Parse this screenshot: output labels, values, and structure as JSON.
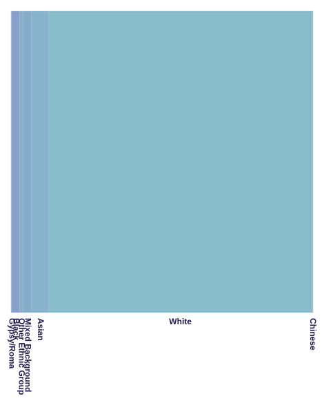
{
  "chart_data": {
    "type": "treemap",
    "title": "",
    "colors": {
      "base": "#87bccb",
      "accent": "#8a9ccb",
      "label": "#1e1b4b"
    },
    "categories": [
      "Gypsy/Roma",
      "Black",
      "Other Ethnic Group",
      "Mixed Background",
      "Asian",
      "White",
      "Chinese"
    ],
    "series": [
      {
        "values": [
          0.4,
          5.3,
          2.1,
          5.8,
          11.2,
          173.7,
          0.6
        ],
        "colors": [
          "#8ca0cc",
          "#899fcb",
          "#8aaacd",
          "#87acc9",
          "#87b3cd",
          "#87bccb",
          "#87c0cc"
        ]
      }
    ]
  }
}
